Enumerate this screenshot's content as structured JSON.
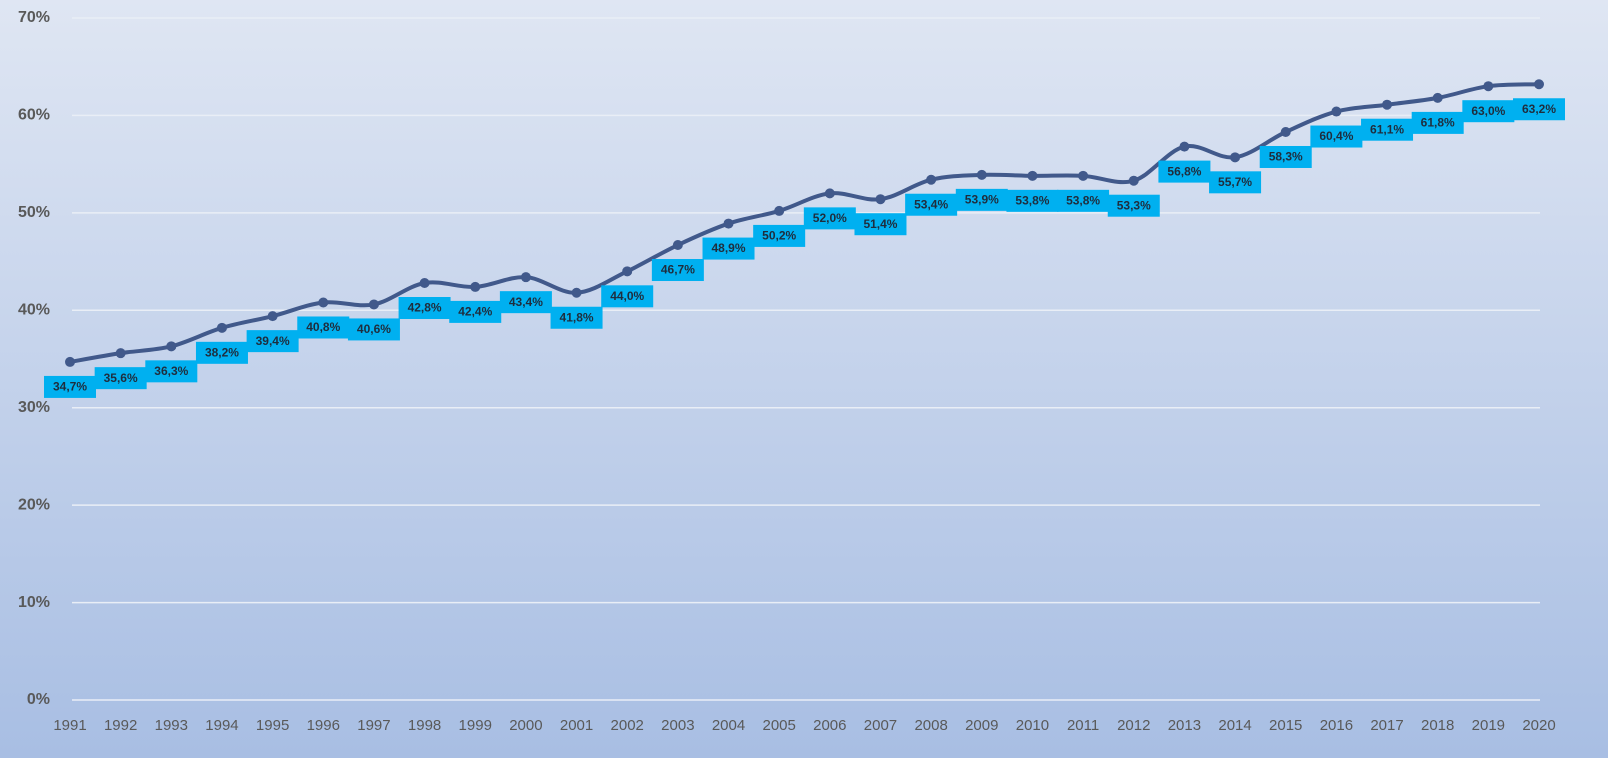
{
  "chart_data": {
    "type": "line",
    "categories": [
      "1991",
      "1992",
      "1993",
      "1994",
      "1995",
      "1996",
      "1997",
      "1998",
      "1999",
      "2000",
      "2001",
      "2002",
      "2003",
      "2004",
      "2005",
      "2006",
      "2007",
      "2008",
      "2009",
      "2010",
      "2011",
      "2012",
      "2013",
      "2014",
      "2015",
      "2016",
      "2017",
      "2018",
      "2019",
      "2020"
    ],
    "values": [
      34.7,
      35.6,
      36.3,
      38.2,
      39.4,
      40.8,
      40.6,
      42.8,
      42.4,
      43.4,
      41.8,
      44.0,
      46.7,
      48.9,
      50.2,
      52.0,
      51.4,
      53.4,
      53.9,
      53.8,
      53.8,
      53.3,
      56.8,
      55.7,
      58.3,
      60.4,
      61.1,
      61.8,
      63.0,
      63.2
    ],
    "value_labels": [
      "34,7%",
      "35,6%",
      "36,3%",
      "38,2%",
      "39,4%",
      "40,8%",
      "40,6%",
      "42,8%",
      "42,4%",
      "43,4%",
      "41,8%",
      "44,0%",
      "46,7%",
      "48,9%",
      "50,2%",
      "52,0%",
      "51,4%",
      "53,4%",
      "53,9%",
      "53,8%",
      "53,8%",
      "53,3%",
      "56,8%",
      "55,7%",
      "58,3%",
      "60,4%",
      "61,1%",
      "61,8%",
      "63,0%",
      "63,2%"
    ],
    "color": "#41598b",
    "label_box_color": "#00b0f0",
    "ylim": [
      0,
      70
    ],
    "yticks": [
      {
        "value": 0,
        "label": "0%"
      },
      {
        "value": 10,
        "label": "10%"
      },
      {
        "value": 20,
        "label": "20%"
      },
      {
        "value": 30,
        "label": "30%"
      },
      {
        "value": 40,
        "label": "40%"
      },
      {
        "value": 50,
        "label": "50%"
      },
      {
        "value": 60,
        "label": "60%"
      },
      {
        "value": 70,
        "label": "70%"
      }
    ],
    "grid": true
  }
}
